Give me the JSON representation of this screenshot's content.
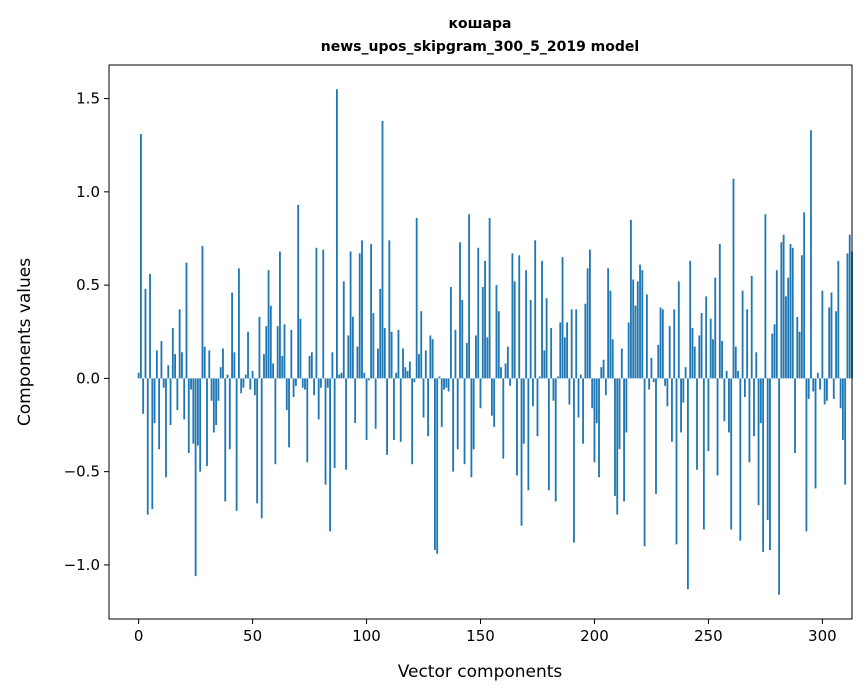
{
  "chart_data": {
    "type": "bar",
    "title": "кошара",
    "subtitle": "news_upos_skipgram_300_5_2019 model",
    "xlabel": "Vector components",
    "ylabel": "Components values",
    "xlim": [
      -13,
      313
    ],
    "ylim": [
      -1.29,
      1.68
    ],
    "xticks": [
      0,
      50,
      100,
      150,
      200,
      250,
      300
    ],
    "xtick_labels": [
      "0",
      "50",
      "100",
      "150",
      "200",
      "250",
      "300"
    ],
    "yticks": [
      -1.0,
      -0.5,
      0.0,
      0.5,
      1.0,
      1.5
    ],
    "ytick_labels": [
      "−1.0",
      "−0.5",
      "0.0",
      "0.5",
      "1.0",
      "1.5"
    ],
    "grid": false,
    "bar_color": "#1f77b4",
    "values": [
      0.03,
      1.31,
      -0.19,
      0.48,
      -0.73,
      0.56,
      -0.7,
      -0.24,
      0.15,
      -0.38,
      0.2,
      -0.05,
      -0.53,
      0.07,
      -0.25,
      0.27,
      0.13,
      -0.17,
      0.37,
      0.14,
      -0.22,
      0.62,
      -0.4,
      -0.06,
      -0.35,
      -1.06,
      -0.36,
      -0.5,
      0.71,
      0.17,
      -0.47,
      0.15,
      -0.12,
      -0.29,
      -0.25,
      -0.12,
      0.06,
      0.16,
      -0.66,
      0.02,
      -0.38,
      0.46,
      0.14,
      -0.71,
      0.59,
      -0.08,
      -0.05,
      0.02,
      0.25,
      -0.06,
      0.04,
      -0.09,
      -0.67,
      0.33,
      -0.75,
      0.13,
      0.28,
      0.58,
      0.39,
      0.08,
      -0.46,
      0.28,
      0.68,
      0.12,
      0.29,
      -0.17,
      -0.37,
      0.26,
      -0.1,
      -0.04,
      0.93,
      0.32,
      -0.05,
      -0.06,
      -0.45,
      0.12,
      0.14,
      -0.09,
      0.7,
      -0.22,
      -0.05,
      0.69,
      -0.57,
      -0.05,
      -0.82,
      0.14,
      -0.48,
      1.55,
      0.02,
      0.03,
      0.52,
      -0.49,
      0.23,
      0.68,
      0.33,
      -0.24,
      0.17,
      0.67,
      0.74,
      0.03,
      -0.33,
      -0.01,
      0.72,
      0.35,
      -0.27,
      0.16,
      0.48,
      1.38,
      0.27,
      -0.41,
      0.74,
      0.25,
      -0.33,
      0.03,
      0.26,
      -0.34,
      0.16,
      0.06,
      0.04,
      0.09,
      -0.46,
      -0.02,
      0.86,
      0.13,
      0.36,
      -0.21,
      0.15,
      -0.31,
      0.23,
      0.21,
      -0.92,
      -0.94,
      0.01,
      -0.26,
      -0.06,
      -0.05,
      -0.07,
      0.49,
      -0.5,
      0.26,
      -0.38,
      0.73,
      0.42,
      -0.46,
      0.19,
      0.88,
      -0.53,
      -0.38,
      0.23,
      0.7,
      -0.16,
      0.49,
      0.63,
      0.22,
      0.86,
      -0.2,
      -0.26,
      0.5,
      0.36,
      0.06,
      -0.43,
      0.08,
      0.17,
      -0.04,
      0.67,
      0.52,
      -0.52,
      0.66,
      -0.79,
      -0.35,
      0.58,
      -0.6,
      0.42,
      -0.15,
      0.74,
      -0.31,
      0.01,
      0.63,
      0.15,
      0.43,
      -0.6,
      0.27,
      -0.12,
      -0.66,
      0.01,
      0.3,
      0.65,
      0.22,
      0.3,
      -0.14,
      0.37,
      -0.88,
      0.37,
      -0.21,
      0.02,
      -0.35,
      0.4,
      0.59,
      0.69,
      -0.16,
      -0.45,
      -0.24,
      -0.53,
      0.06,
      0.1,
      -0.09,
      0.59,
      0.47,
      0.21,
      -0.63,
      -0.73,
      -0.38,
      0.16,
      -0.66,
      -0.29,
      0.3,
      0.85,
      0.53,
      0.39,
      0.52,
      0.61,
      0.58,
      -0.9,
      0.45,
      -0.06,
      0.11,
      -0.02,
      -0.62,
      0.18,
      0.38,
      0.37,
      -0.04,
      -0.15,
      0.28,
      -0.34,
      0.37,
      -0.89,
      0.52,
      -0.29,
      -0.13,
      0.06,
      -1.13,
      0.63,
      0.27,
      0.17,
      -0.49,
      0.23,
      0.35,
      -0.81,
      0.44,
      -0.39,
      0.32,
      0.21,
      0.54,
      -0.52,
      0.72,
      0.2,
      -0.23,
      0.04,
      -0.29,
      -0.81,
      1.07,
      0.17,
      0.04,
      -0.87,
      0.47,
      -0.1,
      0.37,
      -0.45,
      0.55,
      -0.31,
      0.14,
      -0.68,
      -0.24,
      -0.93,
      0.88,
      -0.76,
      -0.92,
      0.24,
      0.29,
      0.58,
      -1.16,
      0.73,
      0.77,
      0.44,
      0.54,
      0.72,
      0.7,
      -0.4,
      0.33,
      0.25,
      0.66,
      0.89,
      -0.82,
      -0.11,
      1.33,
      -0.07,
      -0.59,
      0.03,
      -0.06,
      0.47,
      -0.14,
      -0.12,
      0.38,
      0.46,
      -0.11,
      0.36,
      0.63,
      -0.16,
      -0.33,
      -0.57,
      0.67,
      0.77,
      0.68
    ]
  }
}
